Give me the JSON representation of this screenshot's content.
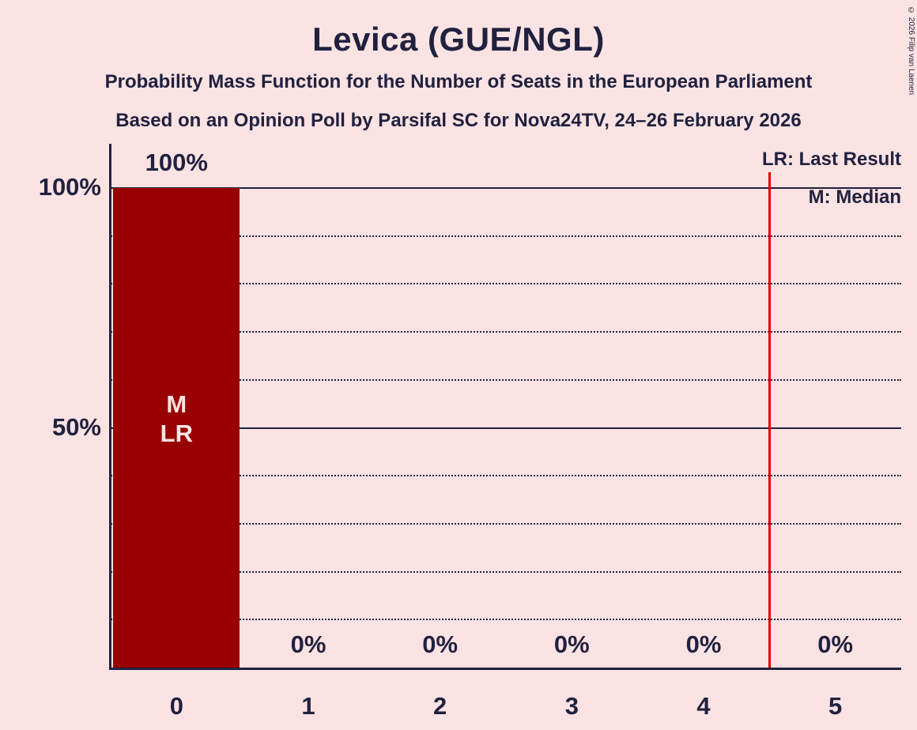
{
  "title": "Levica (GUE/NGL)",
  "subtitle1": "Probability Mass Function for the Number of Seats in the European Parliament",
  "subtitle2": "Based on an Opinion Poll by Parsifal SC for Nova24TV, 24–26 February 2026",
  "legend": {
    "last_result": "LR: Last Result",
    "median": "M: Median"
  },
  "copyright": "© 2026 Filip van Laenen",
  "colors": {
    "background": "#fce3e3",
    "bar": "#990000",
    "text": "#20213f",
    "last_result_line": "#e10000",
    "bar_annotation_text": "#fce3e3"
  },
  "chart_data": {
    "type": "bar",
    "title": "Levica (GUE/NGL)",
    "xlabel": "",
    "ylabel": "",
    "categories": [
      "0",
      "1",
      "2",
      "3",
      "4",
      "5"
    ],
    "values": [
      100,
      0,
      0,
      0,
      0,
      0
    ],
    "value_labels": [
      "100%",
      "0%",
      "0%",
      "0%",
      "0%",
      "0%"
    ],
    "ylim": [
      0,
      100
    ],
    "yticks": [
      {
        "value": 100,
        "label": "100%"
      },
      {
        "value": 50,
        "label": "50%"
      }
    ],
    "gridlines_dotted": [
      10,
      20,
      30,
      40,
      60,
      70,
      80,
      90
    ],
    "gridlines_solid": [
      50,
      100
    ],
    "grid": true,
    "legend_position": "top-right",
    "median_seats": 0,
    "last_result_seats": 0,
    "median_annotation": "M",
    "last_result_annotation": "LR",
    "last_result_marker_x": 4.5
  }
}
